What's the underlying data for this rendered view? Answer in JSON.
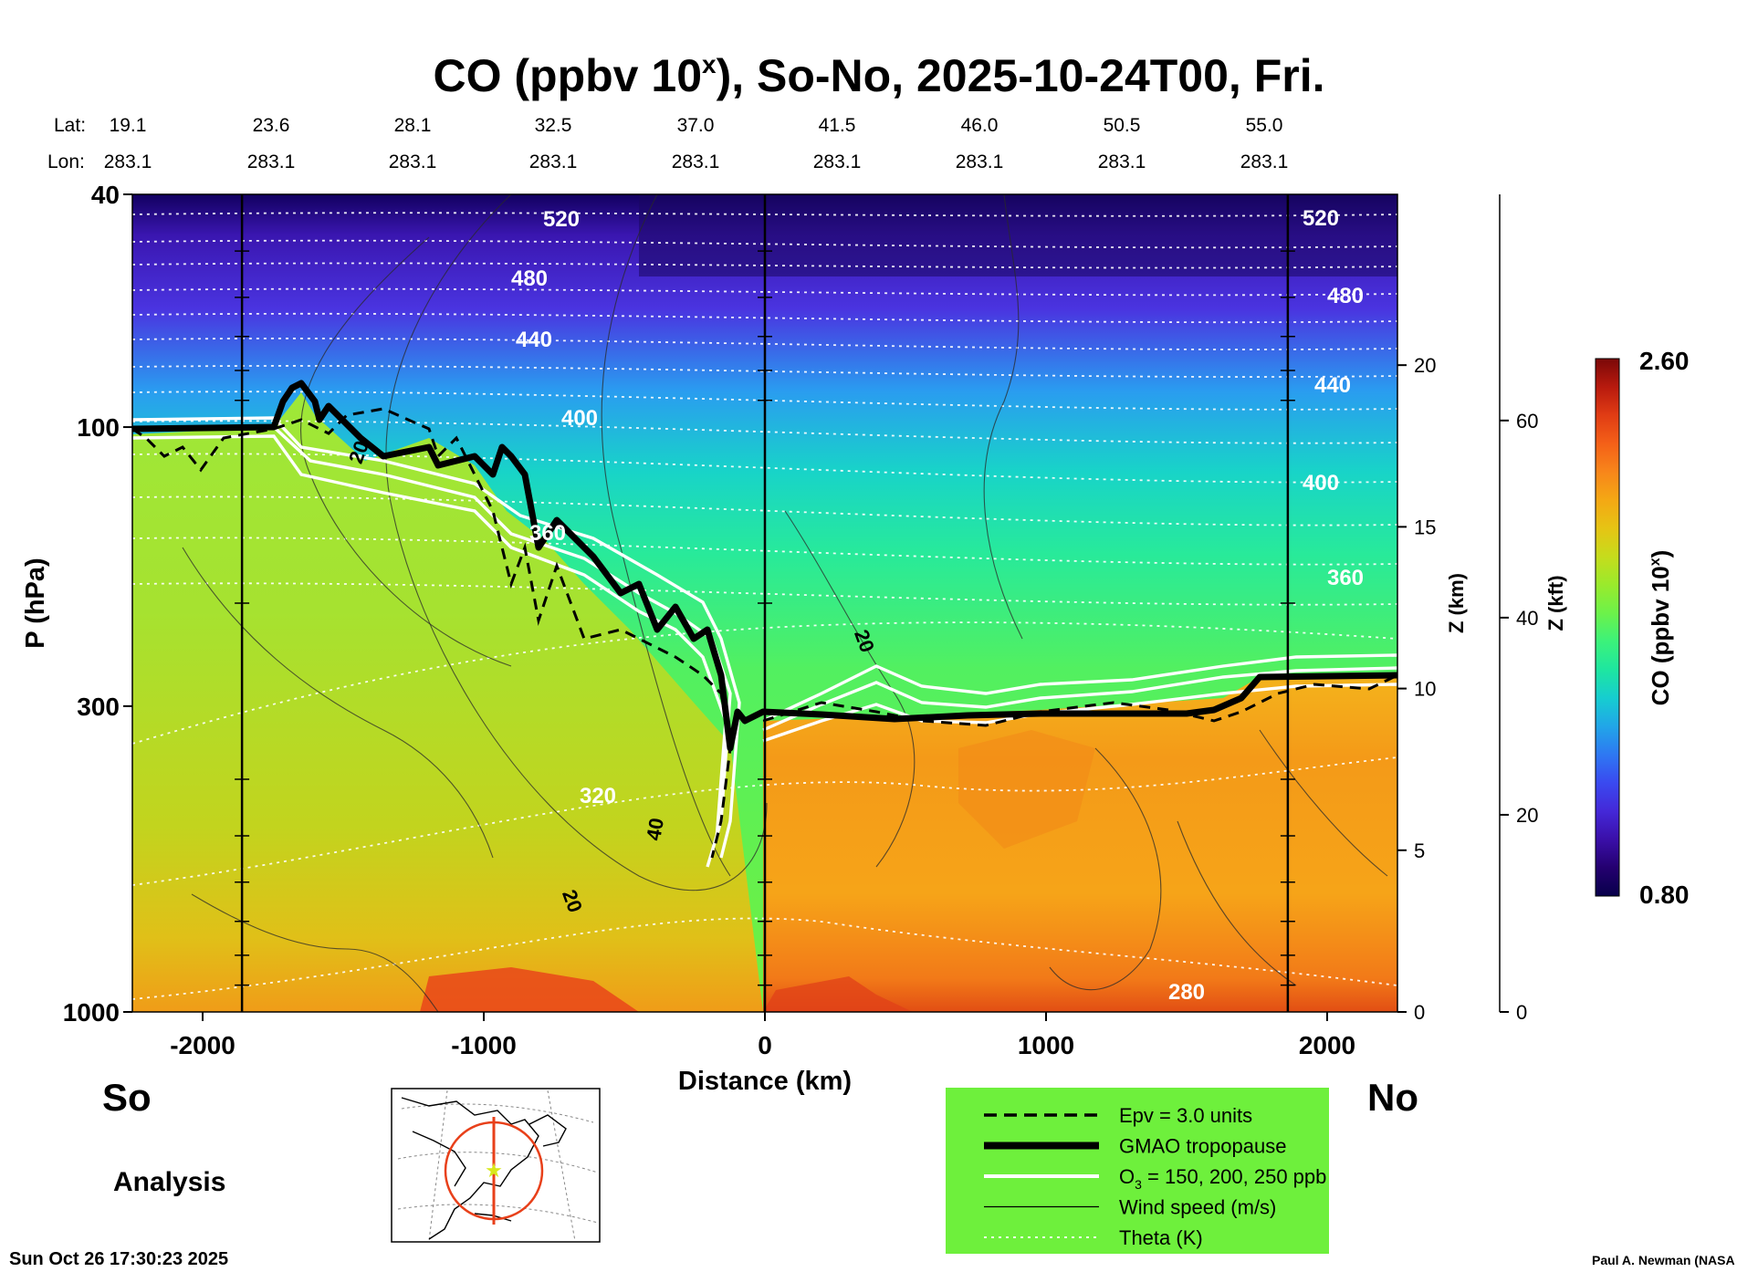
{
  "chart_data": {
    "type": "heatmap",
    "title_main": "CO (ppbv 10",
    "title_sup": "x",
    "title_rest": "), So-No, 2025-10-24T00, Fri.",
    "lat_label": "Lat:",
    "lon_label": "Lon:",
    "lat_values": [
      "19.1",
      "23.6",
      "28.1",
      "32.5",
      "37.0",
      "41.5",
      "46.0",
      "50.5",
      "55.0"
    ],
    "lon_values": [
      "283.1",
      "283.1",
      "283.1",
      "283.1",
      "283.1",
      "283.1",
      "283.1",
      "283.1",
      "283.1"
    ],
    "xlabel": "Distance (km)",
    "ylabel": "P (hPa)",
    "x_range": [
      -2250,
      2250
    ],
    "x_ticks": [
      -2000,
      -1000,
      0,
      1000,
      2000
    ],
    "y_scale": "log",
    "y_range_hpa": [
      1000,
      40
    ],
    "y_ticks": [
      40,
      100,
      300,
      1000
    ],
    "z_km_label": "Z (km)",
    "z_km_ticks": [
      0,
      5,
      10,
      15,
      20
    ],
    "z_kft_label": "Z (kft)",
    "z_kft_ticks": [
      0,
      20,
      40,
      60
    ],
    "colorbar": {
      "label_main": "CO (ppbv 10",
      "label_sup": "x",
      "label_end": ")",
      "max": "2.60",
      "min": "0.80",
      "colors": [
        "#08004a",
        "#240070",
        "#3a0fa8",
        "#4428d8",
        "#3a4af0",
        "#2e78f2",
        "#21a6e8",
        "#16cdd0",
        "#1ee6a0",
        "#3cf27a",
        "#6cf24a",
        "#9aea2c",
        "#c6dc1c",
        "#e6c414",
        "#f4a814",
        "#f8861a",
        "#f46018",
        "#e03c14",
        "#b81a0e",
        "#7a0808"
      ]
    },
    "theta_levels": [
      280,
      320,
      360,
      400,
      440,
      480,
      520
    ],
    "wind_levels": [
      20,
      40
    ],
    "legend": [
      {
        "style": "dashed",
        "label": "Epv = 3.0 units"
      },
      {
        "style": "thick",
        "label": "GMAO tropopause"
      },
      {
        "style": "white",
        "label_main": "O",
        "label_sub": "3",
        "label_rest": " = 150, 200, 250 ppb"
      },
      {
        "style": "thin",
        "label": "Wind speed (m/s)"
      },
      {
        "style": "dotted",
        "label": "Theta (K)"
      }
    ],
    "left_end": "So",
    "right_end": "No",
    "analysis_label": "Analysis",
    "timestamp": "Sun Oct 26 17:30:23 2025",
    "author": "Paul A. Newman (NASA"
  }
}
